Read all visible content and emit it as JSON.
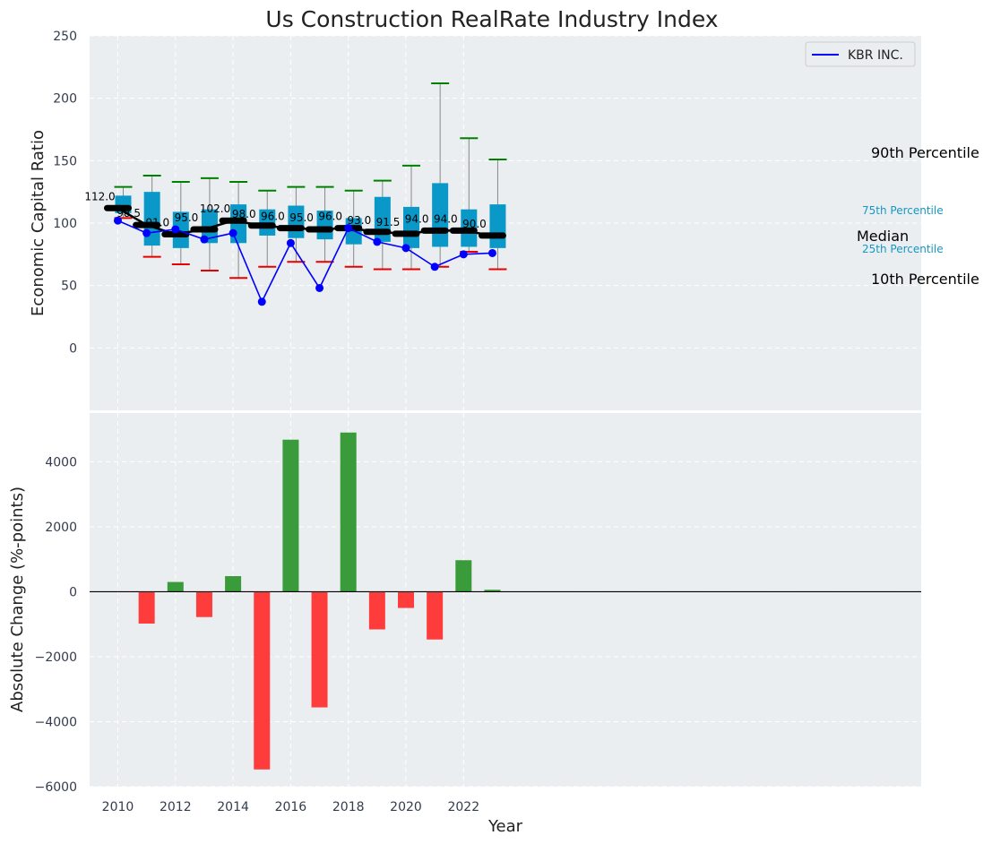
{
  "chart_data": [
    {
      "type": "box",
      "title": "Us Construction RealRate Industry Index",
      "ylabel": "Economic Capital Ratio",
      "ylim": [
        -50,
        250
      ],
      "yticks": [
        0,
        50,
        100,
        150,
        200,
        250
      ],
      "years": [
        2010,
        2011,
        2012,
        2013,
        2014,
        2015,
        2016,
        2017,
        2018,
        2019,
        2020,
        2021,
        2022,
        2023
      ],
      "p10": [
        104,
        73,
        67,
        62,
        56,
        65,
        69,
        69,
        65,
        63,
        63,
        65,
        77,
        63
      ],
      "q1": [
        108,
        82,
        80,
        84,
        84,
        90,
        88,
        87,
        83,
        85,
        80,
        81,
        81,
        80
      ],
      "median": [
        112.0,
        98.5,
        91.0,
        95.0,
        102.0,
        98.0,
        96.0,
        95.0,
        96.0,
        93.0,
        91.5,
        94.0,
        94.0,
        90.0
      ],
      "median_labels": [
        "112.0",
        "98.5",
        "91.0",
        "95.0",
        "102.0",
        "98.0",
        "96.0",
        "95.0",
        "96.0",
        "93.0",
        "91.5",
        "94.0",
        "94.0",
        "90.0"
      ],
      "q3": [
        122,
        125,
        109,
        111,
        115,
        111,
        114,
        110,
        104,
        121,
        113,
        132,
        111,
        115
      ],
      "p90": [
        129,
        138,
        133,
        136,
        133,
        126,
        129,
        129,
        126,
        134,
        146,
        212,
        168,
        151
      ],
      "company": {
        "name": "KBR INC.",
        "values": [
          102,
          92,
          95,
          87,
          92,
          37,
          84,
          48,
          96,
          85,
          80,
          65,
          75,
          76
        ],
        "color": "#0000ff"
      },
      "annotations": {
        "p90": "90th Percentile",
        "p75": "75th Percentile",
        "median": "Median",
        "p25": "25th Percentile",
        "p10": "10th Percentile"
      },
      "legend": {
        "label": "KBR INC.",
        "position": "top-right"
      },
      "colors": {
        "box": "#0a98c9",
        "median_line": "#000000",
        "whisker_top": "#008000",
        "whisker_bottom": "#e60000",
        "background": "#eaeef0"
      },
      "grid": true
    },
    {
      "type": "bar",
      "ylabel": "Absolute Change (%-points)",
      "xlabel": "Year",
      "ylim": [
        -6000,
        5500
      ],
      "yticks": [
        -6000,
        -4000,
        -2000,
        0,
        2000,
        4000
      ],
      "xticks": [
        2010,
        2012,
        2014,
        2016,
        2018,
        2020,
        2022
      ],
      "years": [
        2011,
        2012,
        2013,
        2014,
        2015,
        2016,
        2017,
        2018,
        2019,
        2020,
        2021,
        2022,
        2023
      ],
      "values": [
        -980,
        300,
        -780,
        480,
        -5470,
        4680,
        -3560,
        4900,
        -1160,
        -500,
        -1470,
        970,
        60
      ],
      "colors": {
        "positive": "#3a9b3a",
        "negative": "#ff3c3c"
      },
      "grid": true
    }
  ]
}
